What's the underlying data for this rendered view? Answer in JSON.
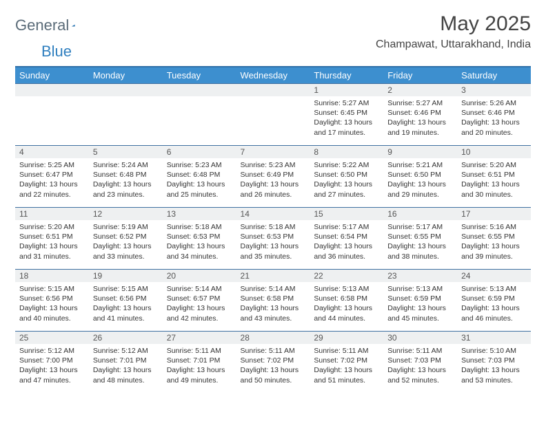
{
  "brand": {
    "word1": "General",
    "word2": "Blue"
  },
  "title": "May 2025",
  "location": "Champawat, Uttarakhand, India",
  "colors": {
    "header_bg": "#3d8fcf",
    "header_border_top": "#2f6fa8",
    "row_border": "#3d6fa0",
    "daynum_bg": "#eef0f1",
    "logo_gray": "#5a6b78",
    "logo_blue": "#2f7fbf"
  },
  "weekdays": [
    "Sunday",
    "Monday",
    "Tuesday",
    "Wednesday",
    "Thursday",
    "Friday",
    "Saturday"
  ],
  "first_weekday_index": 4,
  "days": [
    {
      "n": 1,
      "sunrise": "5:27 AM",
      "sunset": "6:45 PM",
      "daylight": "13 hours and 17 minutes."
    },
    {
      "n": 2,
      "sunrise": "5:27 AM",
      "sunset": "6:46 PM",
      "daylight": "13 hours and 19 minutes."
    },
    {
      "n": 3,
      "sunrise": "5:26 AM",
      "sunset": "6:46 PM",
      "daylight": "13 hours and 20 minutes."
    },
    {
      "n": 4,
      "sunrise": "5:25 AM",
      "sunset": "6:47 PM",
      "daylight": "13 hours and 22 minutes."
    },
    {
      "n": 5,
      "sunrise": "5:24 AM",
      "sunset": "6:48 PM",
      "daylight": "13 hours and 23 minutes."
    },
    {
      "n": 6,
      "sunrise": "5:23 AM",
      "sunset": "6:48 PM",
      "daylight": "13 hours and 25 minutes."
    },
    {
      "n": 7,
      "sunrise": "5:23 AM",
      "sunset": "6:49 PM",
      "daylight": "13 hours and 26 minutes."
    },
    {
      "n": 8,
      "sunrise": "5:22 AM",
      "sunset": "6:50 PM",
      "daylight": "13 hours and 27 minutes."
    },
    {
      "n": 9,
      "sunrise": "5:21 AM",
      "sunset": "6:50 PM",
      "daylight": "13 hours and 29 minutes."
    },
    {
      "n": 10,
      "sunrise": "5:20 AM",
      "sunset": "6:51 PM",
      "daylight": "13 hours and 30 minutes."
    },
    {
      "n": 11,
      "sunrise": "5:20 AM",
      "sunset": "6:51 PM",
      "daylight": "13 hours and 31 minutes."
    },
    {
      "n": 12,
      "sunrise": "5:19 AM",
      "sunset": "6:52 PM",
      "daylight": "13 hours and 33 minutes."
    },
    {
      "n": 13,
      "sunrise": "5:18 AM",
      "sunset": "6:53 PM",
      "daylight": "13 hours and 34 minutes."
    },
    {
      "n": 14,
      "sunrise": "5:18 AM",
      "sunset": "6:53 PM",
      "daylight": "13 hours and 35 minutes."
    },
    {
      "n": 15,
      "sunrise": "5:17 AM",
      "sunset": "6:54 PM",
      "daylight": "13 hours and 36 minutes."
    },
    {
      "n": 16,
      "sunrise": "5:17 AM",
      "sunset": "6:55 PM",
      "daylight": "13 hours and 38 minutes."
    },
    {
      "n": 17,
      "sunrise": "5:16 AM",
      "sunset": "6:55 PM",
      "daylight": "13 hours and 39 minutes."
    },
    {
      "n": 18,
      "sunrise": "5:15 AM",
      "sunset": "6:56 PM",
      "daylight": "13 hours and 40 minutes."
    },
    {
      "n": 19,
      "sunrise": "5:15 AM",
      "sunset": "6:56 PM",
      "daylight": "13 hours and 41 minutes."
    },
    {
      "n": 20,
      "sunrise": "5:14 AM",
      "sunset": "6:57 PM",
      "daylight": "13 hours and 42 minutes."
    },
    {
      "n": 21,
      "sunrise": "5:14 AM",
      "sunset": "6:58 PM",
      "daylight": "13 hours and 43 minutes."
    },
    {
      "n": 22,
      "sunrise": "5:13 AM",
      "sunset": "6:58 PM",
      "daylight": "13 hours and 44 minutes."
    },
    {
      "n": 23,
      "sunrise": "5:13 AM",
      "sunset": "6:59 PM",
      "daylight": "13 hours and 45 minutes."
    },
    {
      "n": 24,
      "sunrise": "5:13 AM",
      "sunset": "6:59 PM",
      "daylight": "13 hours and 46 minutes."
    },
    {
      "n": 25,
      "sunrise": "5:12 AM",
      "sunset": "7:00 PM",
      "daylight": "13 hours and 47 minutes."
    },
    {
      "n": 26,
      "sunrise": "5:12 AM",
      "sunset": "7:01 PM",
      "daylight": "13 hours and 48 minutes."
    },
    {
      "n": 27,
      "sunrise": "5:11 AM",
      "sunset": "7:01 PM",
      "daylight": "13 hours and 49 minutes."
    },
    {
      "n": 28,
      "sunrise": "5:11 AM",
      "sunset": "7:02 PM",
      "daylight": "13 hours and 50 minutes."
    },
    {
      "n": 29,
      "sunrise": "5:11 AM",
      "sunset": "7:02 PM",
      "daylight": "13 hours and 51 minutes."
    },
    {
      "n": 30,
      "sunrise": "5:11 AM",
      "sunset": "7:03 PM",
      "daylight": "13 hours and 52 minutes."
    },
    {
      "n": 31,
      "sunrise": "5:10 AM",
      "sunset": "7:03 PM",
      "daylight": "13 hours and 53 minutes."
    }
  ],
  "labels": {
    "sunrise": "Sunrise:",
    "sunset": "Sunset:",
    "daylight": "Daylight:"
  }
}
